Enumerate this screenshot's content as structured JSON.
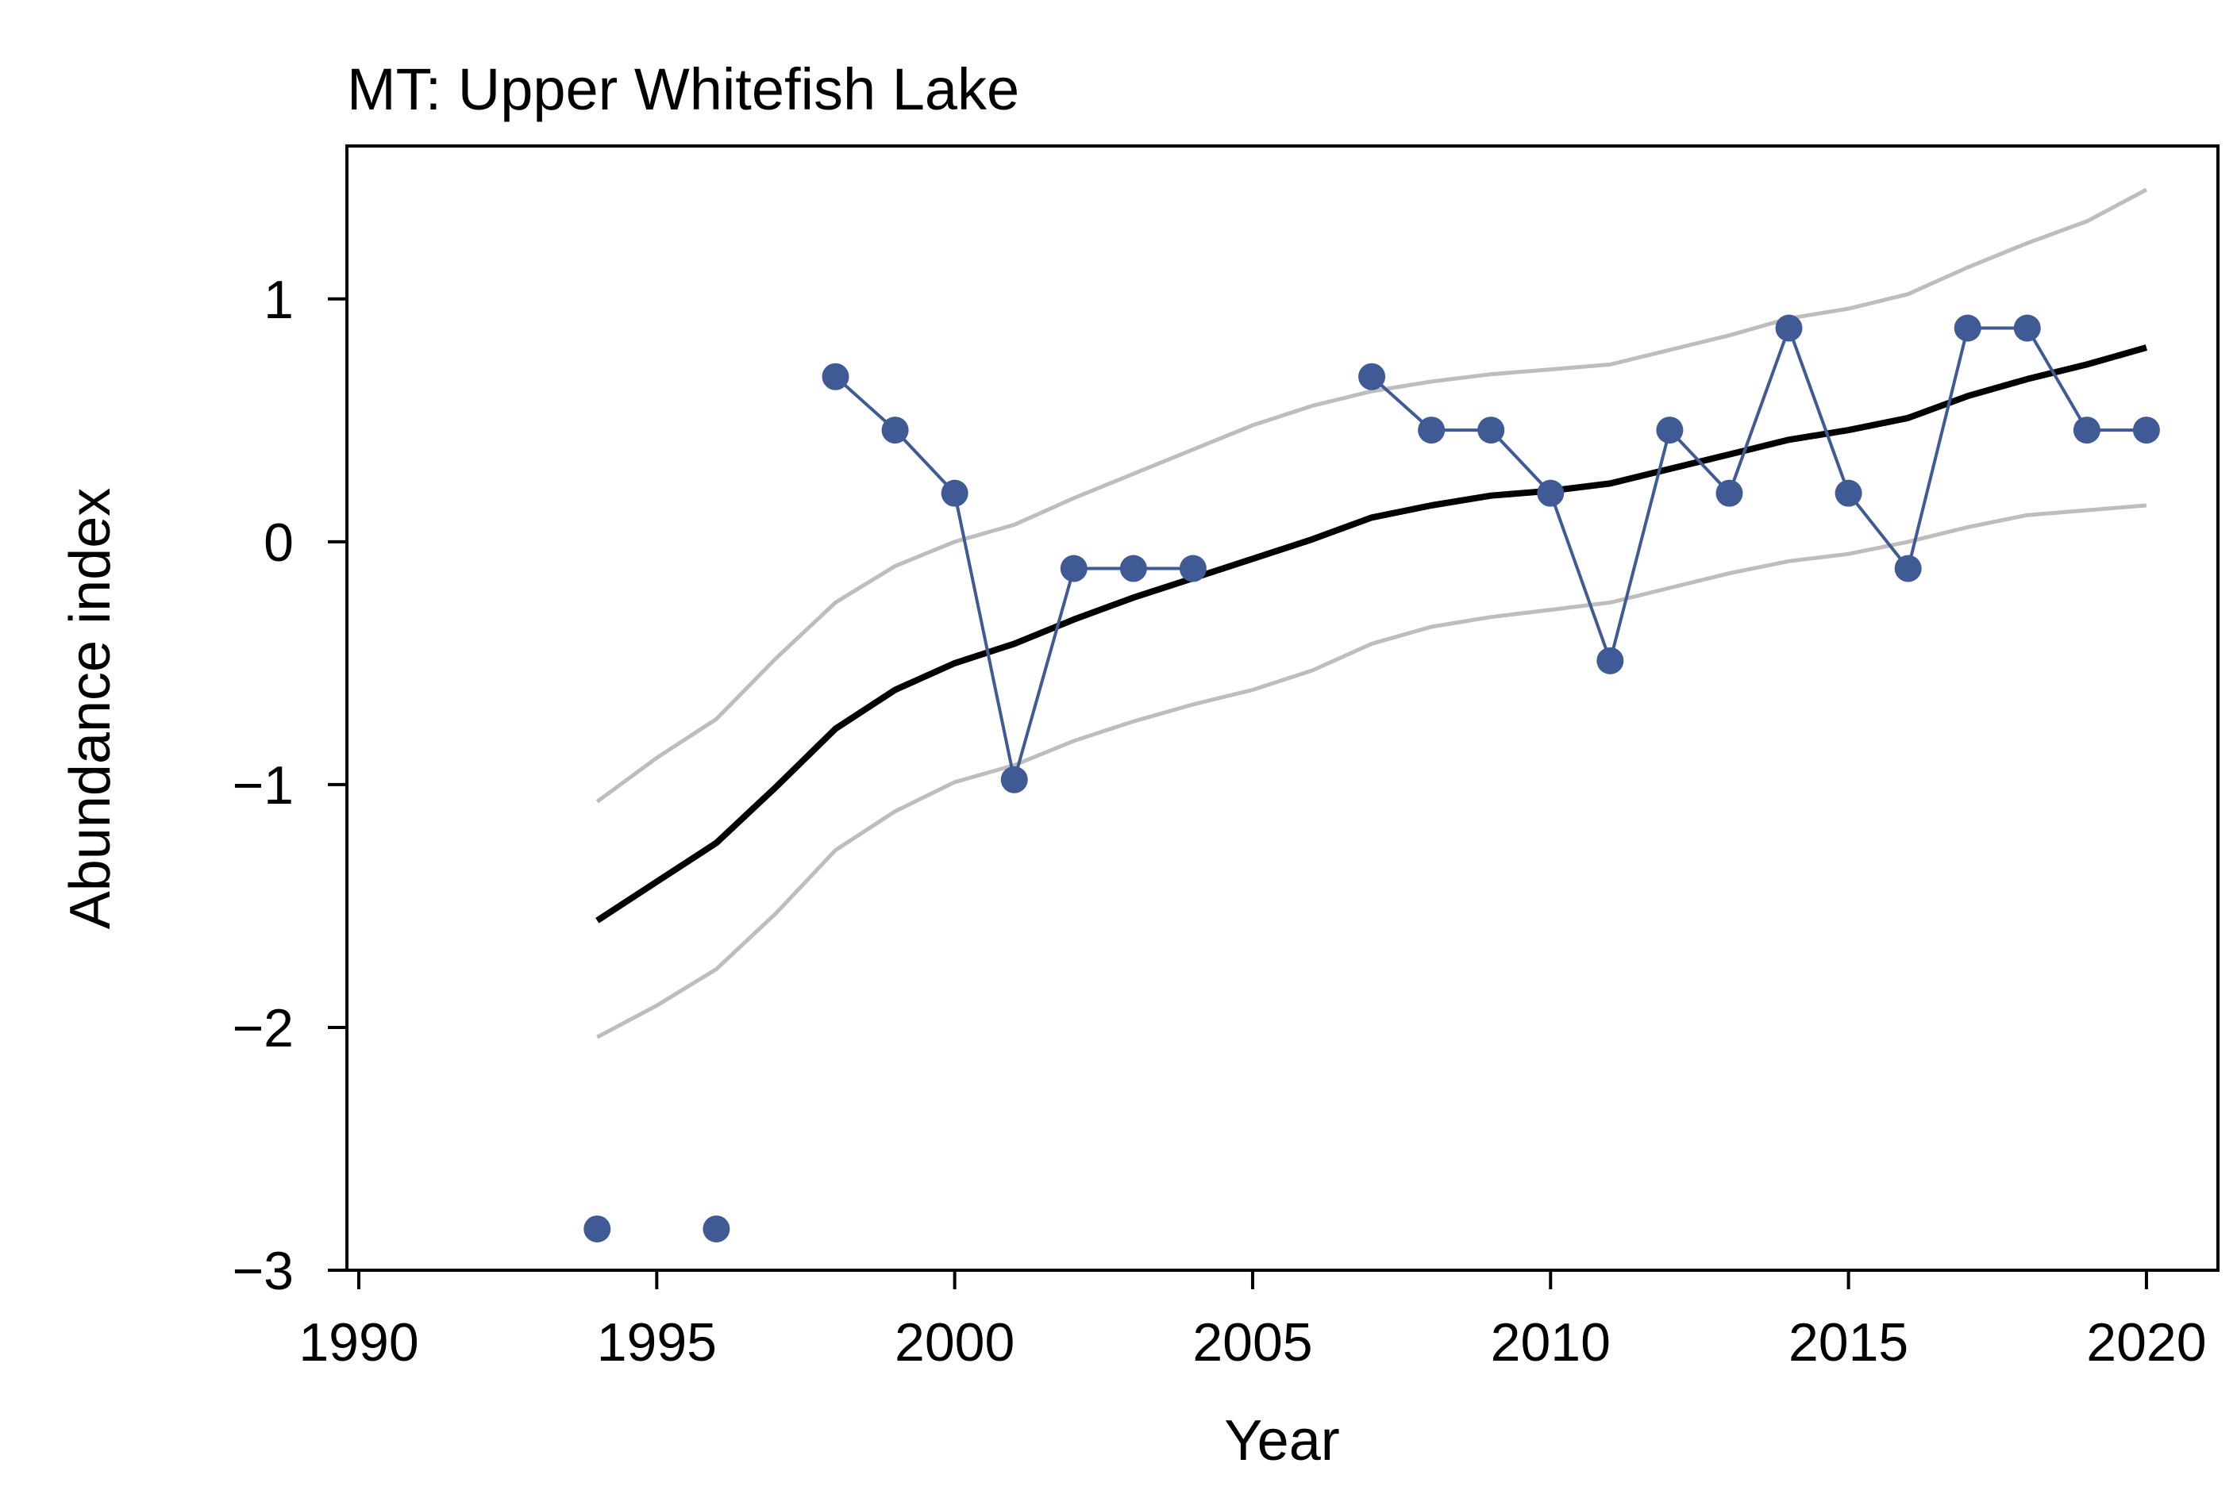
{
  "chart_data": {
    "type": "line",
    "title": "MT: Upper Whitefish Lake",
    "xlabel": "Year",
    "ylabel": "Abundance index",
    "xlim": [
      1989.8,
      2021.2
    ],
    "ylim": [
      -3,
      1.63
    ],
    "xticks": [
      "1990",
      "1995",
      "2000",
      "2005",
      "2010",
      "2015",
      "2020"
    ],
    "yticks": [
      "−3",
      "−2",
      "−1",
      "0",
      "1"
    ],
    "grid": false,
    "legend": "none",
    "colors": {
      "observed": "#3f5a94",
      "trend": "#000000",
      "bounds": "#bdbdbd"
    },
    "series": [
      {
        "role": "observed",
        "style": "points-connected",
        "points": [
          [
            1994,
            -2.83
          ],
          [
            1996,
            -2.83
          ],
          [
            1998,
            0.68
          ],
          [
            1999,
            0.46
          ],
          [
            2000,
            0.2
          ],
          [
            2001,
            -0.98
          ],
          [
            2002,
            -0.11
          ],
          [
            2003,
            -0.11
          ],
          [
            2004,
            -0.11
          ],
          [
            2007,
            0.68
          ],
          [
            2008,
            0.46
          ],
          [
            2009,
            0.46
          ],
          [
            2010,
            0.2
          ],
          [
            2011,
            -0.49
          ],
          [
            2012,
            0.46
          ],
          [
            2013,
            0.2
          ],
          [
            2014,
            0.88
          ],
          [
            2015,
            0.2
          ],
          [
            2016,
            -0.11
          ],
          [
            2017,
            0.88
          ],
          [
            2018,
            0.88
          ],
          [
            2019,
            0.46
          ],
          [
            2020,
            0.46
          ]
        ]
      },
      {
        "role": "trend",
        "style": "line",
        "points": [
          [
            1994,
            -1.56
          ],
          [
            1995,
            -1.4
          ],
          [
            1996,
            -1.24
          ],
          [
            1997,
            -1.01
          ],
          [
            1998,
            -0.77
          ],
          [
            1999,
            -0.61
          ],
          [
            2000,
            -0.5
          ],
          [
            2001,
            -0.42
          ],
          [
            2002,
            -0.32
          ],
          [
            2003,
            -0.23
          ],
          [
            2004,
            -0.15
          ],
          [
            2005,
            -0.07
          ],
          [
            2006,
            0.01
          ],
          [
            2007,
            0.1
          ],
          [
            2008,
            0.15
          ],
          [
            2009,
            0.19
          ],
          [
            2010,
            0.21
          ],
          [
            2011,
            0.24
          ],
          [
            2012,
            0.3
          ],
          [
            2013,
            0.36
          ],
          [
            2014,
            0.42
          ],
          [
            2015,
            0.46
          ],
          [
            2016,
            0.51
          ],
          [
            2017,
            0.6
          ],
          [
            2018,
            0.67
          ],
          [
            2019,
            0.73
          ],
          [
            2020,
            0.8
          ]
        ]
      },
      {
        "role": "upper",
        "style": "line",
        "points": [
          [
            1994,
            -1.07
          ],
          [
            1995,
            -0.89
          ],
          [
            1996,
            -0.73
          ],
          [
            1997,
            -0.48
          ],
          [
            1998,
            -0.25
          ],
          [
            1999,
            -0.1
          ],
          [
            2000,
            0.0
          ],
          [
            2001,
            0.07
          ],
          [
            2002,
            0.18
          ],
          [
            2003,
            0.28
          ],
          [
            2004,
            0.38
          ],
          [
            2005,
            0.48
          ],
          [
            2006,
            0.56
          ],
          [
            2007,
            0.62
          ],
          [
            2008,
            0.66
          ],
          [
            2009,
            0.69
          ],
          [
            2010,
            0.71
          ],
          [
            2011,
            0.73
          ],
          [
            2012,
            0.79
          ],
          [
            2013,
            0.85
          ],
          [
            2014,
            0.92
          ],
          [
            2015,
            0.96
          ],
          [
            2016,
            1.02
          ],
          [
            2017,
            1.13
          ],
          [
            2018,
            1.23
          ],
          [
            2019,
            1.32
          ],
          [
            2020,
            1.45
          ]
        ]
      },
      {
        "role": "lower",
        "style": "line",
        "points": [
          [
            1994,
            -2.04
          ],
          [
            1995,
            -1.91
          ],
          [
            1996,
            -1.76
          ],
          [
            1997,
            -1.53
          ],
          [
            1998,
            -1.27
          ],
          [
            1999,
            -1.11
          ],
          [
            2000,
            -0.99
          ],
          [
            2001,
            -0.92
          ],
          [
            2002,
            -0.82
          ],
          [
            2003,
            -0.74
          ],
          [
            2004,
            -0.67
          ],
          [
            2005,
            -0.61
          ],
          [
            2006,
            -0.53
          ],
          [
            2007,
            -0.42
          ],
          [
            2008,
            -0.35
          ],
          [
            2009,
            -0.31
          ],
          [
            2010,
            -0.28
          ],
          [
            2011,
            -0.25
          ],
          [
            2012,
            -0.19
          ],
          [
            2013,
            -0.13
          ],
          [
            2014,
            -0.08
          ],
          [
            2015,
            -0.05
          ],
          [
            2016,
            0.0
          ],
          [
            2017,
            0.06
          ],
          [
            2018,
            0.11
          ],
          [
            2019,
            0.13
          ],
          [
            2020,
            0.15
          ]
        ]
      }
    ]
  }
}
